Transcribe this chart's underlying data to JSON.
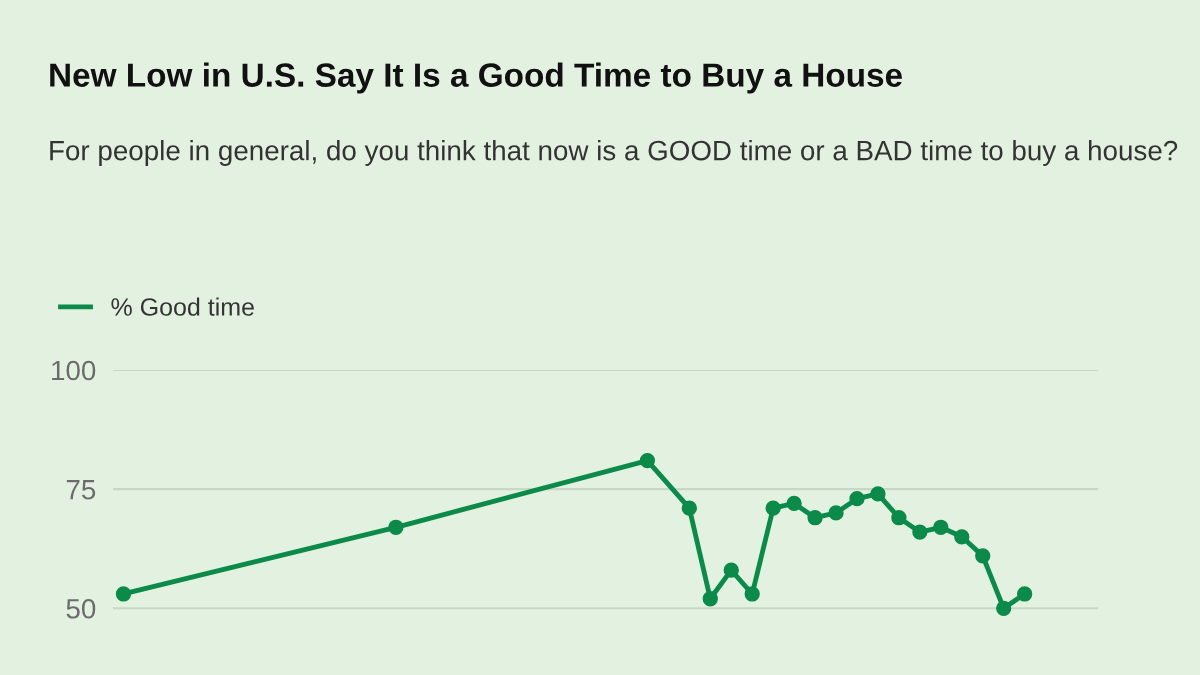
{
  "chart_data": {
    "type": "line",
    "title": "New Low in U.S. Say It Is a Good Time to Buy a House",
    "subtitle": "For people in general, do you think that now is a GOOD time or a BAD time to buy a house?",
    "categories": [
      null,
      null,
      null,
      null,
      null,
      null,
      null,
      null,
      null,
      null,
      null,
      null,
      null,
      null,
      null,
      null,
      null,
      null,
      null,
      null,
      null,
      null,
      null,
      null,
      null,
      null,
      null,
      null,
      null,
      null,
      null,
      null,
      null,
      null,
      null,
      null,
      null,
      null,
      null,
      null,
      null,
      null,
      null,
      null,
      null,
      null,
      null
    ],
    "series": [
      {
        "name": "% Good time",
        "color": "#0b8a4a",
        "values": [
          53,
          null,
          null,
          null,
          null,
          null,
          null,
          null,
          null,
          null,
          null,
          null,
          null,
          67,
          null,
          null,
          null,
          null,
          null,
          null,
          null,
          null,
          null,
          null,
          null,
          81,
          null,
          71,
          52,
          58,
          53,
          71,
          72,
          69,
          70,
          73,
          74,
          69,
          66,
          67,
          65,
          61,
          50,
          53,
          null,
          null,
          null
        ]
      }
    ],
    "ylim": [
      36,
      100
    ],
    "yticks": [
      50,
      75,
      100
    ],
    "grid": "y",
    "legend": "top left",
    "marker": "circle",
    "line_style": "solid",
    "tick_labels": "y"
  }
}
